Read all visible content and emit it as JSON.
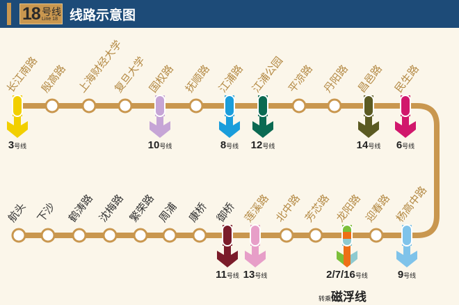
{
  "header": {
    "line_number": "18",
    "line_suffix": "号线",
    "line_en": "Line 18",
    "title": "线路示意图"
  },
  "colors": {
    "track": "#c9974f",
    "header": "#1d4b78",
    "label_top": "#b48a45",
    "label_dark": "#333333"
  },
  "top_stations": [
    {
      "name": "长江南路",
      "transfer": {
        "line": "3",
        "suffix": "号线",
        "colors": [
          "#f2cf00"
        ]
      }
    },
    {
      "name": "殷高路"
    },
    {
      "name": "上海财经大学"
    },
    {
      "name": "复旦大学"
    },
    {
      "name": "国权路",
      "transfer": {
        "line": "10",
        "suffix": "号线",
        "colors": [
          "#c6a5d6"
        ]
      }
    },
    {
      "name": "抚顺路"
    },
    {
      "name": "江浦路",
      "transfer": {
        "line": "8",
        "suffix": "号线",
        "colors": [
          "#1a9ddb"
        ]
      }
    },
    {
      "name": "江浦公园",
      "transfer": {
        "line": "12",
        "suffix": "号线",
        "colors": [
          "#0b6a52"
        ]
      }
    },
    {
      "name": "平凉路"
    },
    {
      "name": "丹阳路"
    },
    {
      "name": "昌邑路",
      "transfer": {
        "line": "14",
        "suffix": "号线",
        "colors": [
          "#5b5a22"
        ]
      }
    },
    {
      "name": "民生路",
      "transfer": {
        "line": "6",
        "suffix": "号线",
        "colors": [
          "#d1176c"
        ]
      }
    }
  ],
  "bottom_stations": [
    {
      "name": "航头"
    },
    {
      "name": "下沙"
    },
    {
      "name": "鹤涛路"
    },
    {
      "name": "沈梅路"
    },
    {
      "name": "繁荣路"
    },
    {
      "name": "周浦"
    },
    {
      "name": "康桥"
    },
    {
      "name": "御桥",
      "transfer": {
        "line": "11",
        "suffix": "号线",
        "colors": [
          "#7b1c2a"
        ]
      }
    },
    {
      "name": "莲溪路",
      "transfer": {
        "line": "13",
        "suffix": "号线",
        "colors": [
          "#e79ec8"
        ]
      }
    },
    {
      "name": "北中路"
    },
    {
      "name": "芳芯路"
    },
    {
      "name": "龙阳路",
      "transfer": {
        "line": "2/7/16",
        "suffix": "号线",
        "colors": [
          "#7cbf3a",
          "#ee6f16",
          "#8ecad0"
        ]
      }
    },
    {
      "name": "迎春路"
    },
    {
      "name": "杨高中路",
      "transfer": {
        "line": "9",
        "suffix": "号线",
        "colors": [
          "#7fc3ea"
        ]
      }
    }
  ],
  "maglev": {
    "prefix": "转乘",
    "name": "磁浮线"
  }
}
